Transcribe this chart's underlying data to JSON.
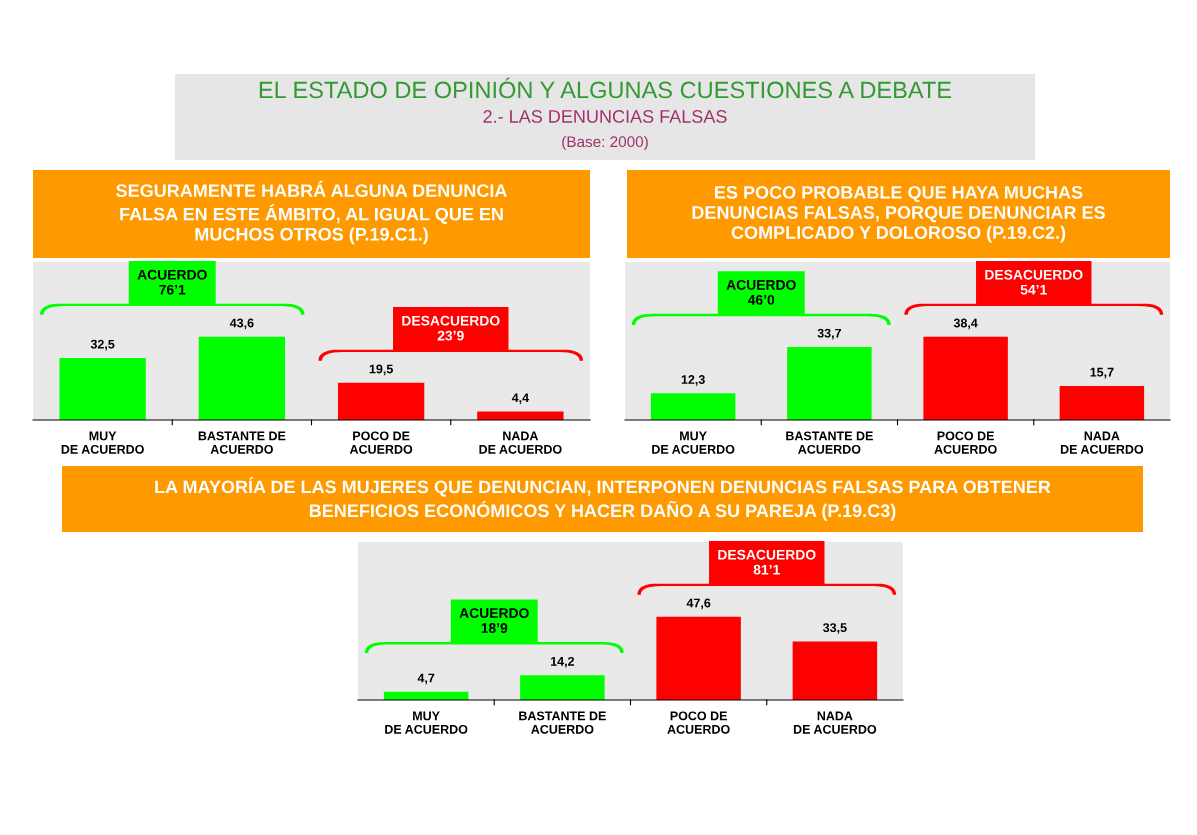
{
  "chart_data": [
    {
      "type": "other",
      "title": "EL ESTADO DE OPINIÓN Y ALGUNAS CUESTIONES A DEBATE",
      "subtitle": "2.- LAS DENUNCIAS FALSAS",
      "annotations": [
        "(Base: 2000)"
      ]
    },
    {
      "type": "bar",
      "title": "SEGURAMENTE HABRÁ ALGUNA DENUNCIA\nFALSA EN ESTE ÁMBITO, AL IGUAL QUE EN\nMUCHOS OTROS (P.19.C1.)",
      "categories": [
        "MUY\nDE ACUERDO",
        "BASTANTE DE\nACUERDO",
        "POCO DE\nACUERDO",
        "NADA\nDE ACUERDO"
      ],
      "values": [
        32.5,
        43.6,
        19.5,
        4.4
      ],
      "value_labels": [
        "32,5",
        "43,6",
        "19,5",
        "4,4"
      ],
      "colors": [
        "#00ff00",
        "#00ff00",
        "#ff0000",
        "#ff0000"
      ],
      "annotations": [
        "ACUERDO\n76’1",
        "DESACUERDO\n23’9"
      ]
    },
    {
      "type": "bar",
      "title": "ES POCO PROBABLE QUE HAYA MUCHAS\nDENUNCIAS FALSAS, PORQUE DENUNCIAR ES\nCOMPLICADO Y DOLOROSO (P.19.C2.)",
      "categories": [
        "MUY\nDE ACUERDO",
        "BASTANTE DE\nACUERDO",
        "POCO DE\nACUERDO",
        "NADA\nDE ACUERDO"
      ],
      "values": [
        12.3,
        33.7,
        38.4,
        15.7
      ],
      "value_labels": [
        "12,3",
        "33,7",
        "38,4",
        "15,7"
      ],
      "colors": [
        "#00ff00",
        "#00ff00",
        "#ff0000",
        "#ff0000"
      ],
      "annotations": [
        "ACUERDO\n46’0",
        "DESACUERDO\n54’1"
      ]
    },
    {
      "type": "bar",
      "title": "LA MAYORÍA DE LAS MUJERES QUE DENUNCIAN, INTERPONEN DENUNCIAS FALSAS PARA OBTENER\nBENEFICIOS ECONÓMICOS Y HACER DAÑO A SU PAREJA (P.19.C3)",
      "categories": [
        "MUY\nDE ACUERDO",
        "BASTANTE DE\nACUERDO",
        "POCO DE\nACUERDO",
        "NADA\nDE ACUERDO"
      ],
      "values": [
        4.7,
        14.2,
        47.6,
        33.5
      ],
      "value_labels": [
        "4,7",
        "14,2",
        "47,6",
        "33,5"
      ],
      "colors": [
        "#00ff00",
        "#00ff00",
        "#ff0000",
        "#ff0000"
      ],
      "annotations": [
        "ACUERDO\n18’9",
        "DESACUERDO\n81’1"
      ]
    }
  ]
}
